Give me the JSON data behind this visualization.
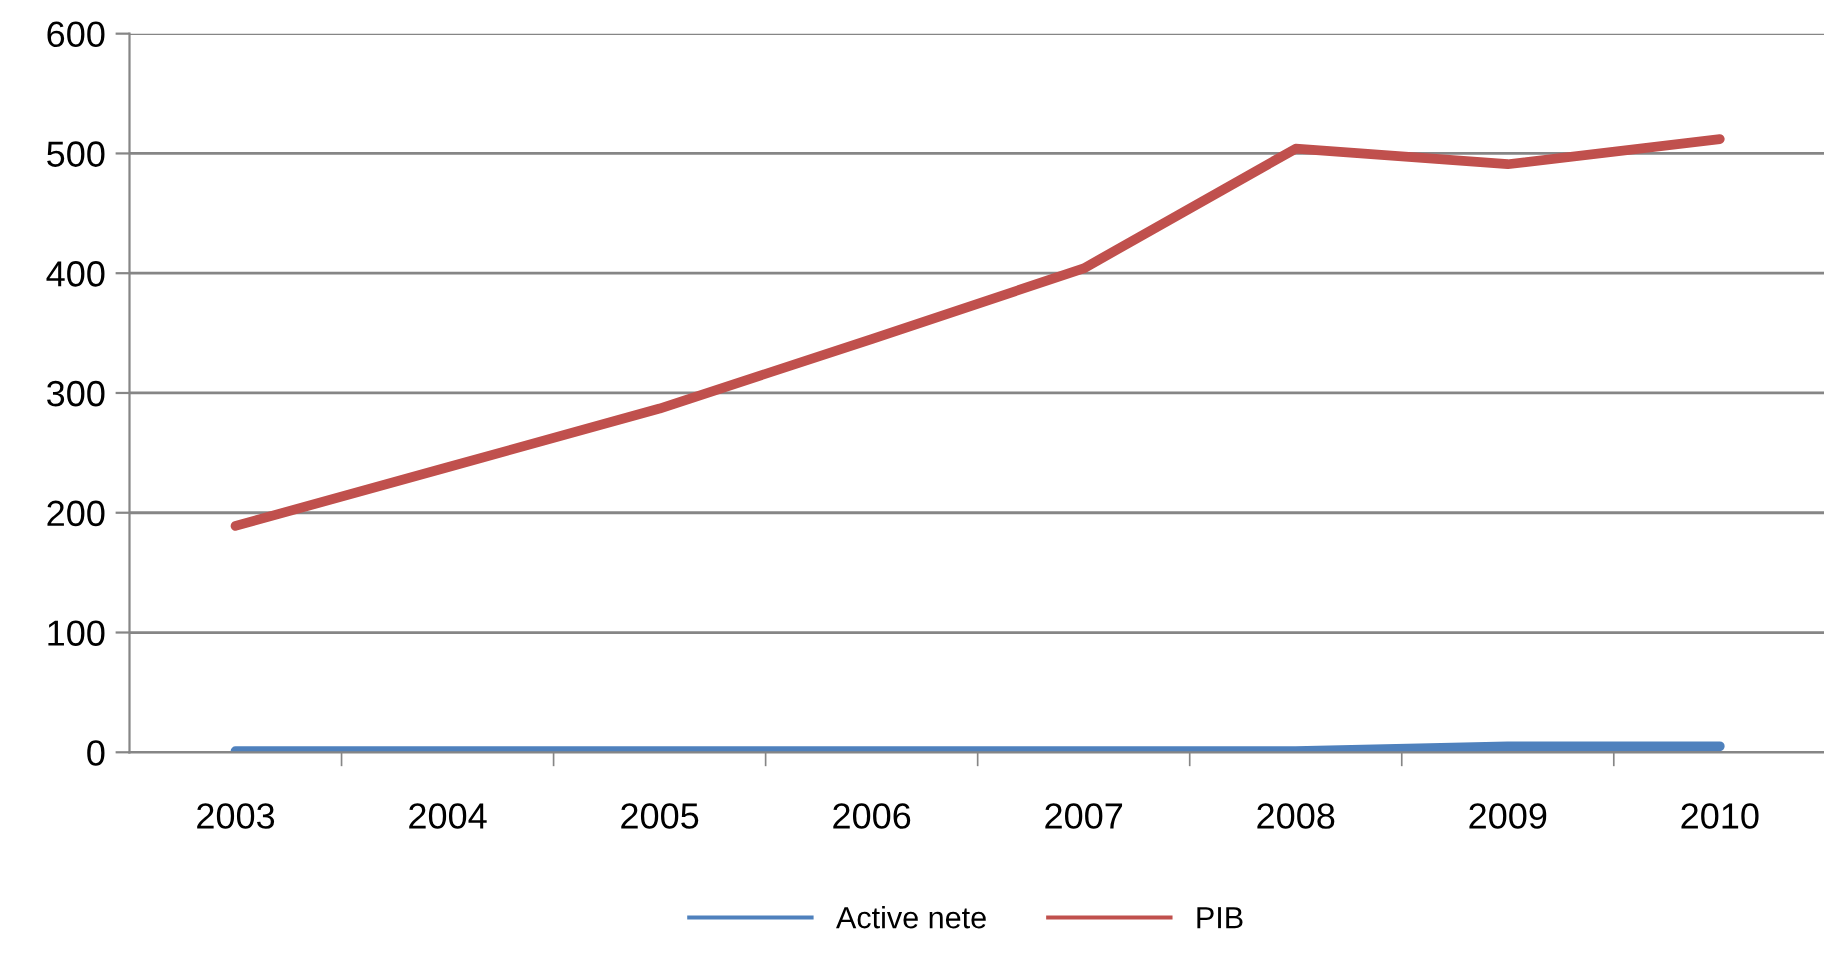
{
  "chart_data": {
    "type": "line",
    "categories": [
      "2003",
      "2004",
      "2005",
      "2006",
      "2007",
      "2008",
      "2009",
      "2010"
    ],
    "series": [
      {
        "name": "Active nete",
        "color": "#4f81bd",
        "values": [
          1,
          1,
          1,
          1,
          1,
          1,
          5,
          5
        ]
      },
      {
        "name": "PIB",
        "color": "#c0504d",
        "values": [
          189,
          238,
          287,
          345,
          404,
          504,
          491,
          512
        ]
      }
    ],
    "ylim": [
      0,
      600
    ],
    "yticks": [
      0,
      100,
      200,
      300,
      400,
      500,
      600
    ],
    "grid": "y",
    "legend": "bottom",
    "marker": "none",
    "line_style": "solid"
  }
}
